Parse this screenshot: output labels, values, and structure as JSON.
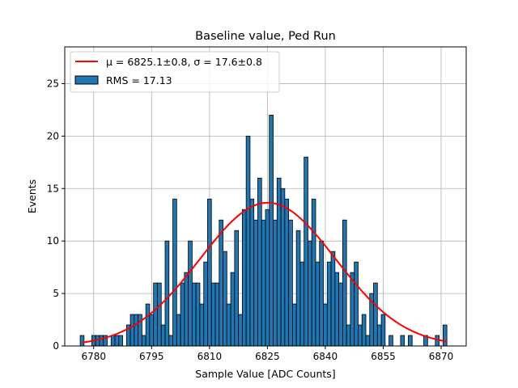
{
  "chart_data": {
    "type": "bar",
    "title": "Baseline value, Ped Run",
    "xlabel": "Sample Value [ADC Counts]",
    "ylabel": "Events",
    "xlim": [
      6772.5,
      6876.5
    ],
    "ylim": [
      0,
      28.5
    ],
    "xticks": [
      6780,
      6795,
      6810,
      6825,
      6840,
      6855,
      6870
    ],
    "yticks": [
      0,
      5,
      10,
      15,
      20,
      25
    ],
    "grid": true,
    "legend_position": "top-left",
    "bin_width": 1,
    "bins": [
      [
        6777,
        1
      ],
      [
        6780,
        1
      ],
      [
        6781,
        1
      ],
      [
        6782,
        1
      ],
      [
        6783,
        1
      ],
      [
        6785,
        1
      ],
      [
        6786,
        1
      ],
      [
        6787,
        1
      ],
      [
        6789,
        2
      ],
      [
        6790,
        3
      ],
      [
        6791,
        3
      ],
      [
        6792,
        3
      ],
      [
        6793,
        1
      ],
      [
        6794,
        4
      ],
      [
        6795,
        3
      ],
      [
        6796,
        6
      ],
      [
        6797,
        6
      ],
      [
        6798,
        2
      ],
      [
        6799,
        10
      ],
      [
        6800,
        1
      ],
      [
        6801,
        14
      ],
      [
        6802,
        3
      ],
      [
        6803,
        6
      ],
      [
        6804,
        7
      ],
      [
        6805,
        10
      ],
      [
        6806,
        6
      ],
      [
        6807,
        6
      ],
      [
        6808,
        4
      ],
      [
        6809,
        8
      ],
      [
        6810,
        14
      ],
      [
        6811,
        6
      ],
      [
        6812,
        6
      ],
      [
        6813,
        12
      ],
      [
        6814,
        9
      ],
      [
        6815,
        4
      ],
      [
        6816,
        7
      ],
      [
        6817,
        11
      ],
      [
        6818,
        3
      ],
      [
        6819,
        13
      ],
      [
        6820,
        20
      ],
      [
        6821,
        14
      ],
      [
        6822,
        12
      ],
      [
        6823,
        16
      ],
      [
        6824,
        12
      ],
      [
        6825,
        13
      ],
      [
        6826,
        22
      ],
      [
        6827,
        12
      ],
      [
        6828,
        16
      ],
      [
        6829,
        15
      ],
      [
        6830,
        14
      ],
      [
        6831,
        12
      ],
      [
        6832,
        4
      ],
      [
        6833,
        11
      ],
      [
        6834,
        8
      ],
      [
        6835,
        18
      ],
      [
        6836,
        10
      ],
      [
        6837,
        14
      ],
      [
        6838,
        8
      ],
      [
        6839,
        10
      ],
      [
        6840,
        4
      ],
      [
        6841,
        8
      ],
      [
        6842,
        9
      ],
      [
        6843,
        7
      ],
      [
        6844,
        6
      ],
      [
        6845,
        12
      ],
      [
        6846,
        2
      ],
      [
        6847,
        7
      ],
      [
        6848,
        8
      ],
      [
        6849,
        2
      ],
      [
        6850,
        3
      ],
      [
        6851,
        1
      ],
      [
        6852,
        5
      ],
      [
        6853,
        6
      ],
      [
        6854,
        2
      ],
      [
        6855,
        3
      ],
      [
        6857,
        1
      ],
      [
        6860,
        1
      ],
      [
        6862,
        1
      ],
      [
        6866,
        1
      ],
      [
        6869,
        1
      ],
      [
        6871,
        2
      ]
    ],
    "fit_curve": {
      "mu": 6825.1,
      "sigma": 17.6,
      "amplitude": 13.65,
      "x_range": [
        6777,
        6871.5
      ]
    },
    "legend": [
      {
        "label": "μ = 6825.1±0.8, σ = 17.6±0.8",
        "color": "#ff0000"
      },
      {
        "label": "RMS = 17.13",
        "color": "#1f77b4"
      }
    ],
    "colors": {
      "bars": "#1f77b4",
      "bar_edge": "#000000",
      "fit": "#ff0000",
      "grid": "#b0b0b0"
    }
  }
}
